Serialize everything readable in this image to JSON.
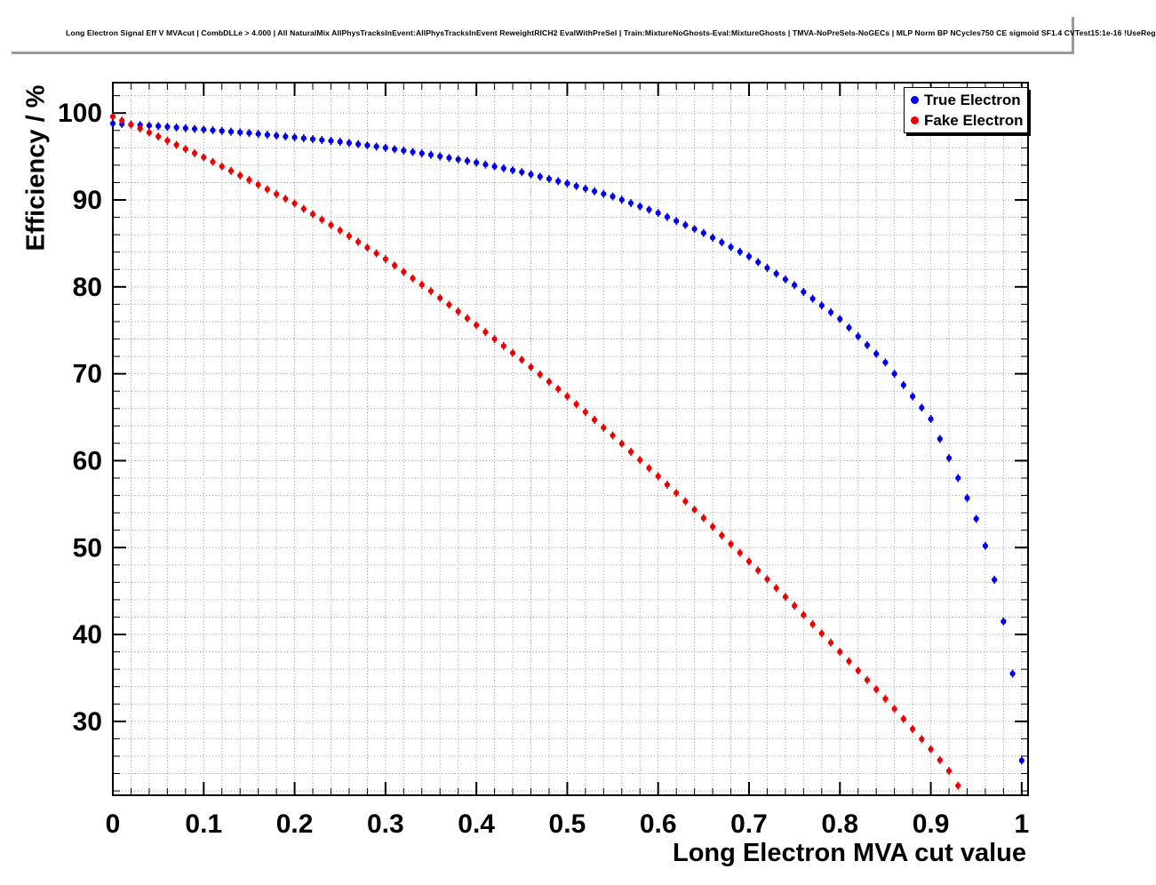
{
  "chart_data": {
    "type": "scatter",
    "title": "Long Electron Signal Eff V MVAcut | CombDLLe > 4.000 | All NaturalMix AllPhysTracksInEvent:AllPhysTracksInEvent ReweightRICH2 EvalWithPreSel | Train:MixtureNoGhosts-Eval:MixtureGhosts | TMVA-NoPreSels-NoGECs | MLP Norm BP NCycles750 CE sigmoid SF1.4 CVTest15:1e-16 !UseReg",
    "xlabel": "Long Electron MVA cut value",
    "ylabel": "Efficiency / %",
    "xlim": [
      0,
      1.007
    ],
    "ylim": [
      21.5,
      103.5
    ],
    "x_ticks": [
      0,
      0.1,
      0.2,
      0.3,
      0.4,
      0.5,
      0.6,
      0.7,
      0.8,
      0.9,
      1.0
    ],
    "x_tick_labels": [
      "0",
      "0.1",
      "0.2",
      "0.3",
      "0.4",
      "0.5",
      "0.6",
      "0.7",
      "0.8",
      "0.9",
      "1"
    ],
    "y_ticks": [
      30,
      40,
      50,
      60,
      70,
      80,
      90,
      100
    ],
    "y_tick_labels": [
      "30",
      "40",
      "50",
      "60",
      "70",
      "80",
      "90",
      "100"
    ],
    "x_minor_step": 0.02,
    "y_minor_step": 2,
    "grid": true,
    "grid_style": "dotted",
    "legend": {
      "position": "top-right",
      "entries": [
        {
          "label": "True Electron",
          "color": "#0000ee",
          "marker": "circle"
        },
        {
          "label": "Fake Electron",
          "color": "#ee0000",
          "marker": "circle"
        }
      ]
    },
    "series": [
      {
        "name": "True Electron",
        "color": "#0000ee",
        "x": [
          0,
          0.01,
          0.02,
          0.03,
          0.04,
          0.05,
          0.06,
          0.07,
          0.08,
          0.09,
          0.1,
          0.11,
          0.12,
          0.13,
          0.14,
          0.15,
          0.16,
          0.17,
          0.18,
          0.19,
          0.2,
          0.21,
          0.22,
          0.23,
          0.24,
          0.25,
          0.26,
          0.27,
          0.28,
          0.29,
          0.3,
          0.31,
          0.32,
          0.33,
          0.34,
          0.35,
          0.36,
          0.37,
          0.38,
          0.39,
          0.4,
          0.41,
          0.42,
          0.43,
          0.44,
          0.45,
          0.46,
          0.47,
          0.48,
          0.49,
          0.5,
          0.51,
          0.52,
          0.53,
          0.54,
          0.55,
          0.56,
          0.57,
          0.58,
          0.59,
          0.6,
          0.61,
          0.62,
          0.63,
          0.64,
          0.65,
          0.66,
          0.67,
          0.68,
          0.69,
          0.7,
          0.71,
          0.72,
          0.73,
          0.74,
          0.75,
          0.76,
          0.77,
          0.78,
          0.79,
          0.8,
          0.81,
          0.82,
          0.83,
          0.84,
          0.85,
          0.86,
          0.87,
          0.88,
          0.89,
          0.9,
          0.91,
          0.92,
          0.93,
          0.94,
          0.95,
          0.96,
          0.97,
          0.98,
          0.99,
          1
        ],
        "y": [
          98.8,
          98.74,
          98.68,
          98.62,
          98.56,
          98.5,
          98.42,
          98.34,
          98.26,
          98.18,
          98.1,
          98.02,
          97.94,
          97.86,
          97.78,
          97.7,
          97.6,
          97.5,
          97.4,
          97.3,
          97.2,
          97.1,
          97.0,
          96.9,
          96.8,
          96.7,
          96.56,
          96.42,
          96.28,
          96.14,
          96.0,
          95.84,
          95.68,
          95.52,
          95.36,
          95.2,
          95.02,
          94.84,
          94.66,
          94.48,
          94.3,
          94.08,
          93.86,
          93.64,
          93.42,
          93.2,
          92.94,
          92.68,
          92.42,
          92.16,
          91.9,
          91.6,
          91.3,
          91.0,
          90.7,
          90.4,
          90.02,
          89.64,
          89.26,
          88.88,
          88.5,
          88.04,
          87.58,
          87.12,
          86.66,
          86.2,
          85.66,
          85.12,
          84.58,
          84.04,
          83.5,
          82.84,
          82.18,
          81.52,
          80.86,
          80.2,
          79.42,
          78.64,
          77.86,
          77.08,
          76.3,
          75.3,
          74.3,
          73.3,
          72.3,
          71.3,
          70.0,
          68.7,
          67.4,
          66.1,
          64.8,
          62.5,
          60.3,
          58.0,
          55.7,
          53.3,
          50.2,
          46.3,
          41.5,
          35.5,
          25.5
        ]
      },
      {
        "name": "Fake Electron",
        "color": "#ee0000",
        "x": [
          0,
          0.01,
          0.02,
          0.03,
          0.04,
          0.05,
          0.06,
          0.07,
          0.08,
          0.09,
          0.1,
          0.11,
          0.12,
          0.13,
          0.14,
          0.15,
          0.16,
          0.17,
          0.18,
          0.19,
          0.2,
          0.21,
          0.22,
          0.23,
          0.24,
          0.25,
          0.26,
          0.27,
          0.28,
          0.29,
          0.3,
          0.31,
          0.32,
          0.33,
          0.34,
          0.35,
          0.36,
          0.37,
          0.38,
          0.39,
          0.4,
          0.41,
          0.42,
          0.43,
          0.44,
          0.45,
          0.46,
          0.47,
          0.48,
          0.49,
          0.5,
          0.51,
          0.52,
          0.53,
          0.54,
          0.55,
          0.56,
          0.57,
          0.58,
          0.59,
          0.6,
          0.61,
          0.62,
          0.63,
          0.64,
          0.65,
          0.66,
          0.67,
          0.68,
          0.69,
          0.7,
          0.71,
          0.72,
          0.73,
          0.74,
          0.75,
          0.76,
          0.77,
          0.78,
          0.79,
          0.8,
          0.81,
          0.82,
          0.83,
          0.84,
          0.85,
          0.86,
          0.87,
          0.88,
          0.89,
          0.9,
          0.91,
          0.92,
          0.93
        ],
        "y": [
          99.6,
          99.14,
          98.68,
          98.22,
          97.76,
          97.3,
          96.82,
          96.34,
          95.86,
          95.38,
          94.9,
          94.38,
          93.86,
          93.34,
          92.82,
          92.3,
          91.76,
          91.22,
          90.68,
          90.14,
          89.6,
          88.98,
          88.36,
          87.74,
          87.12,
          86.5,
          85.84,
          85.18,
          84.52,
          83.86,
          83.2,
          82.46,
          81.72,
          80.98,
          80.24,
          79.5,
          78.72,
          77.94,
          77.16,
          76.38,
          75.6,
          74.8,
          74.0,
          73.2,
          72.4,
          71.6,
          70.76,
          69.92,
          69.08,
          68.24,
          67.4,
          66.5,
          65.6,
          64.7,
          63.8,
          62.9,
          61.96,
          61.02,
          60.08,
          59.14,
          58.2,
          57.24,
          56.28,
          55.32,
          54.36,
          53.4,
          52.4,
          51.4,
          50.4,
          49.4,
          48.4,
          47.38,
          46.36,
          45.34,
          44.32,
          43.3,
          42.24,
          41.18,
          40.12,
          39.06,
          38.0,
          36.92,
          35.84,
          34.76,
          33.68,
          32.6,
          31.44,
          30.28,
          29.12,
          27.96,
          26.8,
          25.55,
          24.3,
          22.6
        ]
      }
    ]
  },
  "colors": {
    "background": "#ffffff",
    "frame": "#000000",
    "grid": "#999999",
    "text": "#000000"
  }
}
